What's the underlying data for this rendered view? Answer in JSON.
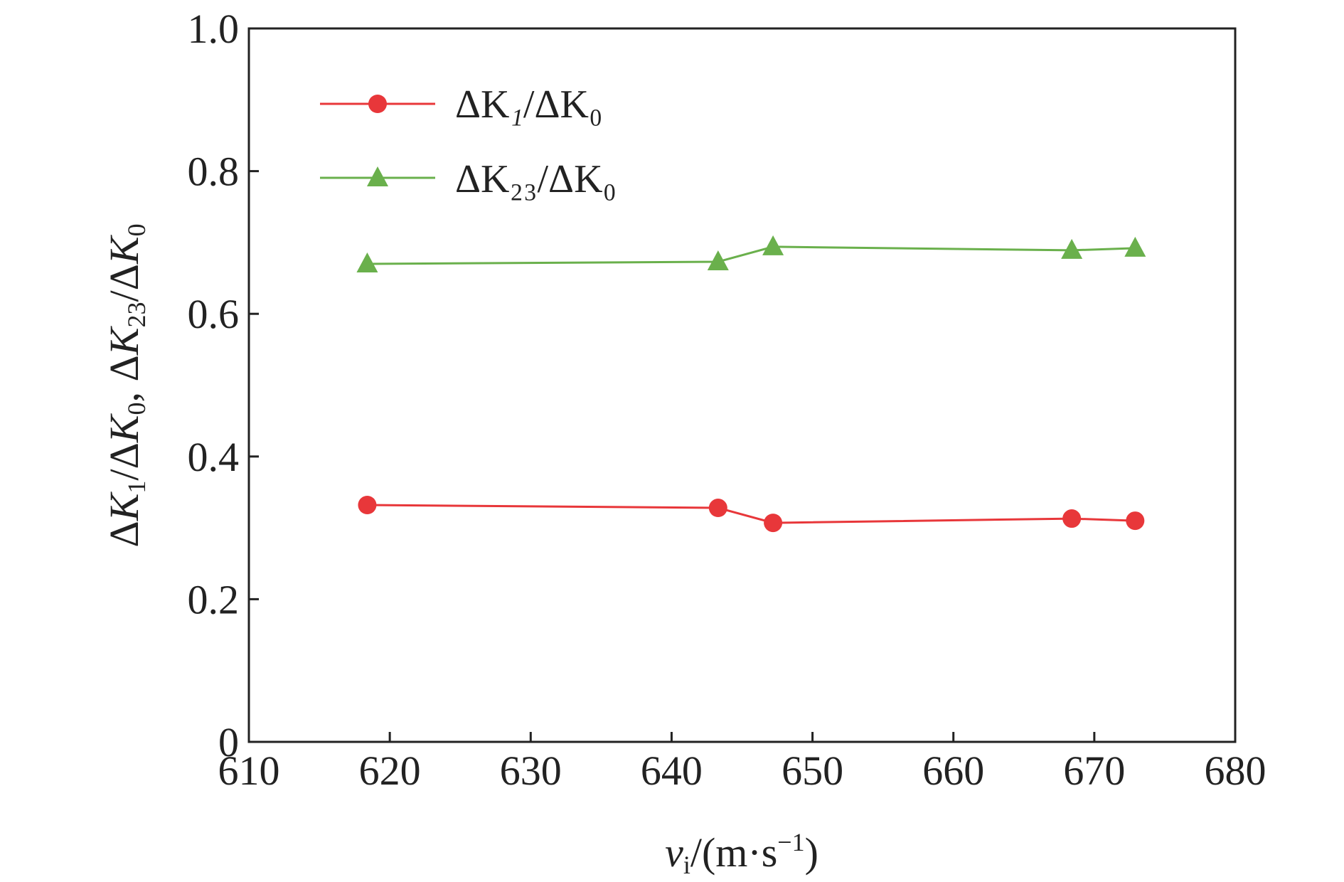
{
  "chart_data": {
    "type": "line",
    "xlabel": "v_i/(m·s^-1)",
    "ylabel": "ΔK_1/ΔK_0, ΔK_23/ΔK_0",
    "xlim": [
      610,
      680
    ],
    "ylim": [
      0,
      1.0
    ],
    "xticks": [
      610,
      620,
      630,
      640,
      650,
      660,
      670,
      680
    ],
    "yticks": [
      0,
      0.2,
      0.4,
      0.6,
      0.8,
      1.0
    ],
    "xtick_labels": [
      "610",
      "620",
      "630",
      "640",
      "650",
      "660",
      "670",
      "680"
    ],
    "ytick_labels": [
      "0",
      "0.2",
      "0.4",
      "0.6",
      "0.8",
      "1.0"
    ],
    "grid": false,
    "legend_position": "top-left",
    "series": [
      {
        "name": "ΔK_1/ΔK_0",
        "marker": "circle",
        "color": "#e8373a",
        "x": [
          618.4,
          643.3,
          647.2,
          668.4,
          672.9
        ],
        "y": [
          0.332,
          0.328,
          0.307,
          0.313,
          0.31
        ]
      },
      {
        "name": "ΔK_23/ΔK_0",
        "marker": "triangle",
        "color": "#6ab04c",
        "x": [
          618.4,
          643.3,
          647.2,
          668.4,
          672.9
        ],
        "y": [
          0.67,
          0.673,
          0.694,
          0.689,
          0.692
        ]
      }
    ]
  }
}
